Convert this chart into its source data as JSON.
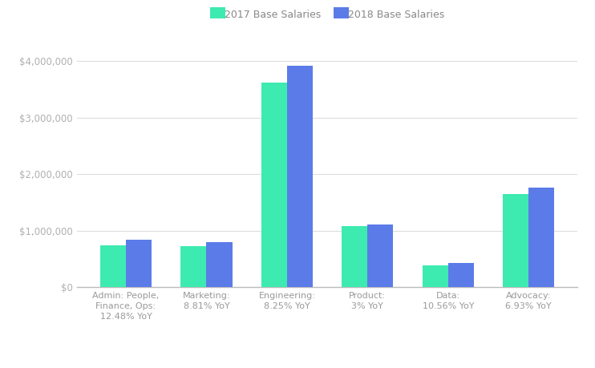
{
  "categories": [
    "Admin: People,\nFinance, Ops:\n12.48% YoY",
    "Marketing:\n8.81% YoY",
    "Engineering:\n8.25% YoY",
    "Product:\n3% YoY",
    "Data:\n10.56% YoY",
    "Advocacy:\n6.93% YoY"
  ],
  "values_2017": [
    740000,
    730000,
    3620000,
    1080000,
    390000,
    1640000
  ],
  "values_2018": [
    833000,
    795000,
    3920000,
    1112000,
    431000,
    1754000
  ],
  "color_2017": "#3DEAB0",
  "color_2018": "#5B7BE8",
  "legend_2017": "2017 Base Salaries",
  "legend_2018": "2018 Base Salaries",
  "ylim": [
    0,
    4300000
  ],
  "yticks": [
    0,
    1000000,
    2000000,
    3000000,
    4000000
  ],
  "ytick_labels": [
    "$0",
    "$1,000,000",
    "$2,000,000",
    "$3,000,000",
    "$4,000,000"
  ],
  "background_color": "#ffffff",
  "grid_color": "#dddddd",
  "bar_width": 0.32,
  "figsize": [
    7.42,
    4.59
  ],
  "dpi": 100
}
